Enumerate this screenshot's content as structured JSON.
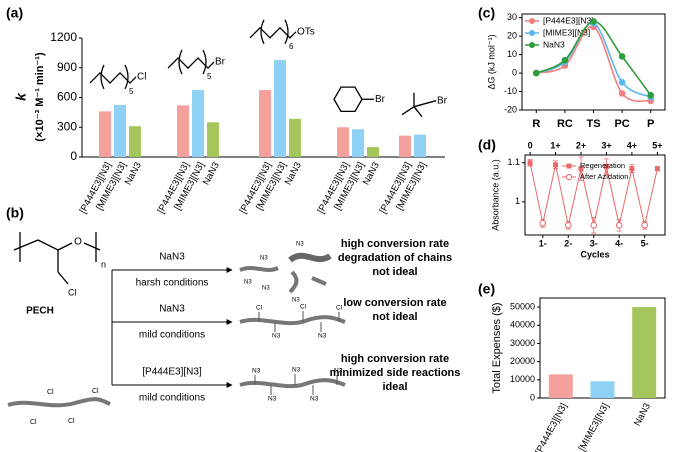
{
  "panel_labels": [
    "(a)",
    "(b)",
    "(c)",
    "(d)",
    "(e)"
  ],
  "chart_data": [
    {
      "type": "bar",
      "y_label": "k",
      "y_label_units": "(×10⁻³ M⁻¹ min⁻¹)",
      "categories": [
        null,
        null,
        null,
        null,
        null
      ],
      "structures": [
        {
          "subscript": "5",
          "group": "Cl"
        },
        {
          "subscript": "5",
          "group": "Br"
        },
        {
          "subscript": "6",
          "group": "OTs"
        },
        {
          "group": "Br"
        },
        {
          "group": "Br"
        }
      ],
      "series": [
        {
          "name": "[P444E3][N3]",
          "color": "#f4a09c",
          "values": [
            460,
            520,
            675,
            300,
            215
          ]
        },
        {
          "name": "[MIME3][N3]",
          "color": "#8fd0f5",
          "values": [
            525,
            675,
            980,
            280,
            225
          ]
        },
        {
          "name": "NaN3",
          "color": "#a3c55c",
          "values": [
            310,
            350,
            385,
            100,
            null
          ]
        }
      ],
      "ylim": [
        0,
        1200
      ],
      "yticks": [
        0,
        300,
        600,
        900,
        1200
      ]
    },
    {
      "type": "line",
      "y_label": "ΔG (kJ mol⁻¹)",
      "categories": [
        "R",
        "RC",
        "TS",
        "PC",
        "P"
      ],
      "series": [
        {
          "name": "[P444E3][N3]",
          "color": "#f07f7f",
          "values": [
            0,
            4,
            25,
            -11,
            -15
          ]
        },
        {
          "name": "[MIME3][N3]",
          "color": "#5bb8ee",
          "values": [
            0,
            6,
            27,
            -5,
            -13
          ]
        },
        {
          "name": "NaN3",
          "color": "#2e9e3a",
          "values": [
            0,
            7,
            28,
            9,
            -12
          ]
        }
      ],
      "ylim": [
        -20,
        32
      ],
      "yticks": [
        -20,
        -10,
        0,
        10,
        20,
        30
      ]
    },
    {
      "type": "scatter",
      "y_label": "Absorbance (a.u.)",
      "x_label": "Cycles",
      "series": [
        {
          "name": "Regeneration",
          "color": "#e8696b",
          "x": [
            0,
            1,
            2,
            3,
            4,
            5
          ],
          "values": [
            1.1,
            1.095,
            1.085,
            1.09,
            1.085,
            1.085
          ],
          "errors": [
            0.008,
            0.01,
            0.03,
            0.02,
            0.01,
            0.005
          ]
        },
        {
          "name": "After Azidation",
          "color": "#e8696b",
          "x": [
            0.5,
            1.5,
            2.5,
            3.5,
            4.5
          ],
          "values": [
            0.945,
            0.94,
            0.94,
            0.94,
            0.94
          ],
          "errors": [
            0.01,
            0.01,
            0.02,
            0.015,
            0.01
          ]
        }
      ],
      "xlim": [
        -0.2,
        5.3
      ],
      "xticks": [
        {
          "value": 0.5,
          "label": "1-"
        },
        {
          "value": 1.5,
          "label": "2-"
        },
        {
          "value": 2.5,
          "label": "3-"
        },
        {
          "value": 3.5,
          "label": "4-"
        },
        {
          "value": 4.5,
          "label": "5-"
        }
      ],
      "top_xticks": [
        0,
        {
          "value": 1,
          "label": "1+"
        },
        {
          "value": 2,
          "label": "2+"
        },
        {
          "value": 3,
          "label": "3+"
        },
        {
          "value": 4,
          "label": "4+"
        },
        {
          "value": 5,
          "label": "5+"
        }
      ],
      "ylim": [
        0.915,
        1.12
      ],
      "yticks": [
        1.0,
        1.1
      ]
    },
    {
      "type": "bar",
      "y_label": "Total Expenses ($)",
      "categories": [
        "[P444E3][N3]",
        "[MIME3][N3]",
        "NaN3"
      ],
      "values": [
        13000,
        9200,
        50000
      ],
      "colors": [
        "#f4a09c",
        "#8fd0f5",
        "#a3c55c"
      ],
      "ylim": [
        0,
        55000
      ],
      "yticks": [
        0,
        10000,
        20000,
        30000,
        40000,
        50000
      ]
    }
  ],
  "scheme": {
    "polymer": "PECH",
    "o": "O",
    "repeat": "n",
    "cl": "Cl",
    "n3": "N3",
    "routes": [
      {
        "reagent": "NaN3",
        "condition": "harsh conditions",
        "outcome": [
          "high conversion rate",
          "degradation of chains",
          "not ideal"
        ],
        "color": "#000000"
      },
      {
        "reagent": "NaN3",
        "condition": "mild conditions",
        "outcome": [
          "low conversion rate",
          "not ideal"
        ],
        "color": "#000000"
      },
      {
        "reagent": "[P444E3][N3]",
        "condition": "mild conditions",
        "outcome": [
          "high conversion rate",
          "minimized side reactions",
          "ideal"
        ],
        "color": "#d41a1a"
      }
    ]
  }
}
